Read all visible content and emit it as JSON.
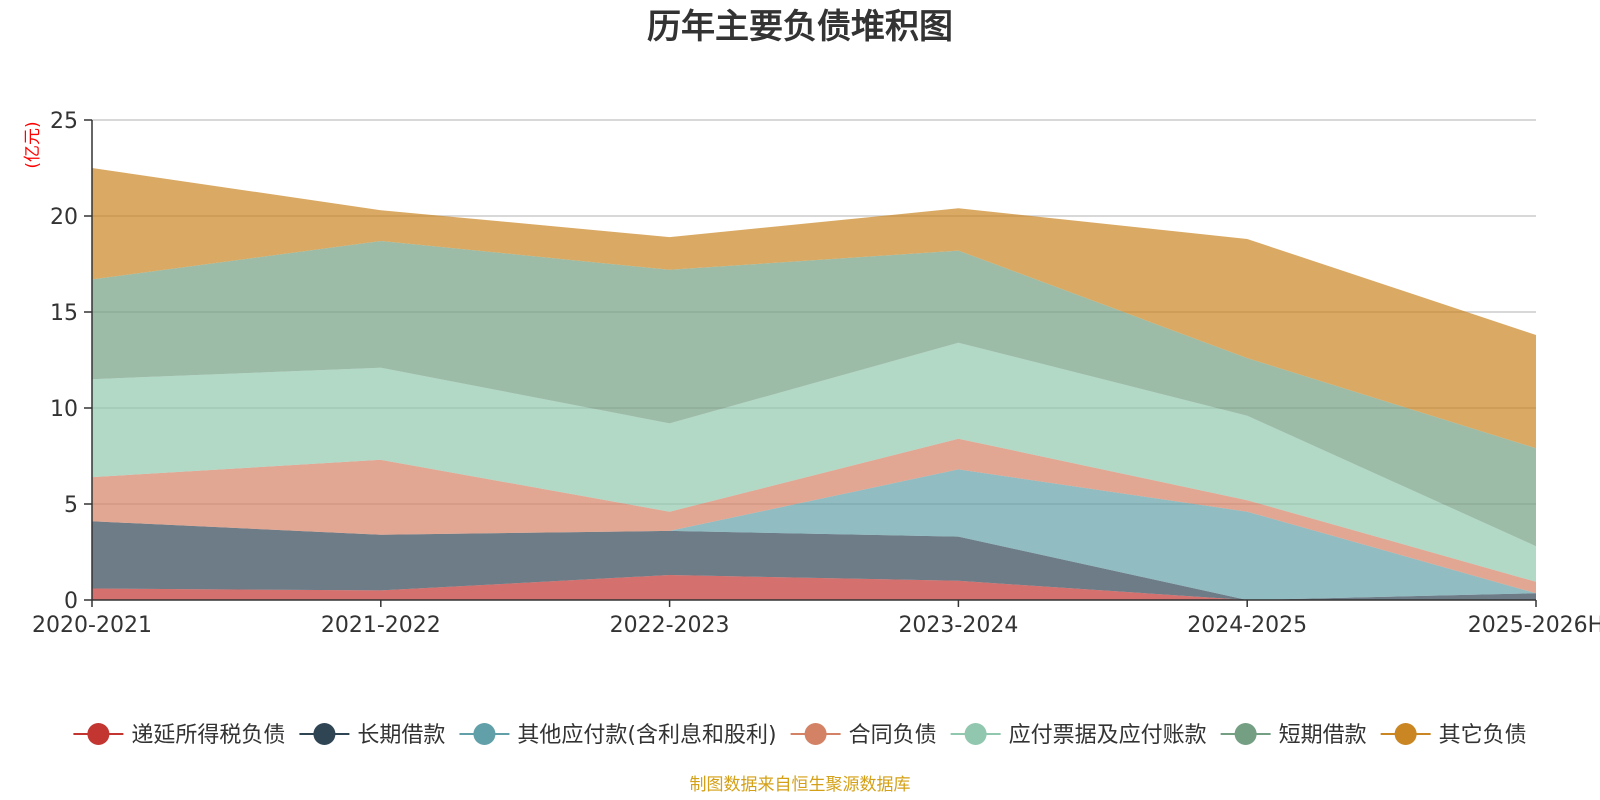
{
  "chart_data": {
    "type": "area",
    "stacked": true,
    "title": "历年主要负债堆积图",
    "unit": "(亿元)",
    "categories": [
      "2020-2021",
      "2021-2022",
      "2022-2023",
      "2023-2024",
      "2024-2025",
      "2025-2026H"
    ],
    "yticks": [
      "0",
      "5",
      "10",
      "15",
      "20",
      "25"
    ],
    "ylim": [
      0,
      25
    ],
    "grid": true,
    "legend_position": "bottom",
    "series": [
      {
        "name": "递延所得税负债",
        "color": "#c23531",
        "values": [
          0.6,
          0.5,
          1.3,
          1.0,
          0.0,
          0.0
        ]
      },
      {
        "name": "长期借款",
        "color": "#2f4554",
        "values": [
          3.5,
          2.9,
          2.3,
          2.3,
          0.0,
          0.35
        ]
      },
      {
        "name": "其他应付款(含利息和股利)",
        "color": "#61a0a8",
        "values": [
          0.0,
          0.0,
          0.0,
          3.5,
          4.6,
          0.0
        ]
      },
      {
        "name": "合同负债",
        "color": "#d48265",
        "values": [
          2.3,
          3.9,
          1.0,
          1.6,
          0.6,
          0.6
        ]
      },
      {
        "name": "应付票据及应付账款",
        "color": "#91c7ae",
        "values": [
          5.1,
          4.8,
          4.6,
          5.0,
          4.4,
          1.85
        ]
      },
      {
        "name": "短期借款",
        "color": "#749f83",
        "values": [
          5.2,
          6.6,
          8.0,
          4.8,
          3.0,
          5.1
        ]
      },
      {
        "name": "其它负债",
        "color": "#ca8622",
        "values": [
          5.8,
          1.6,
          1.7,
          2.2,
          6.2,
          5.9
        ]
      }
    ],
    "source": "制图数据来自恒生聚源数据库"
  }
}
